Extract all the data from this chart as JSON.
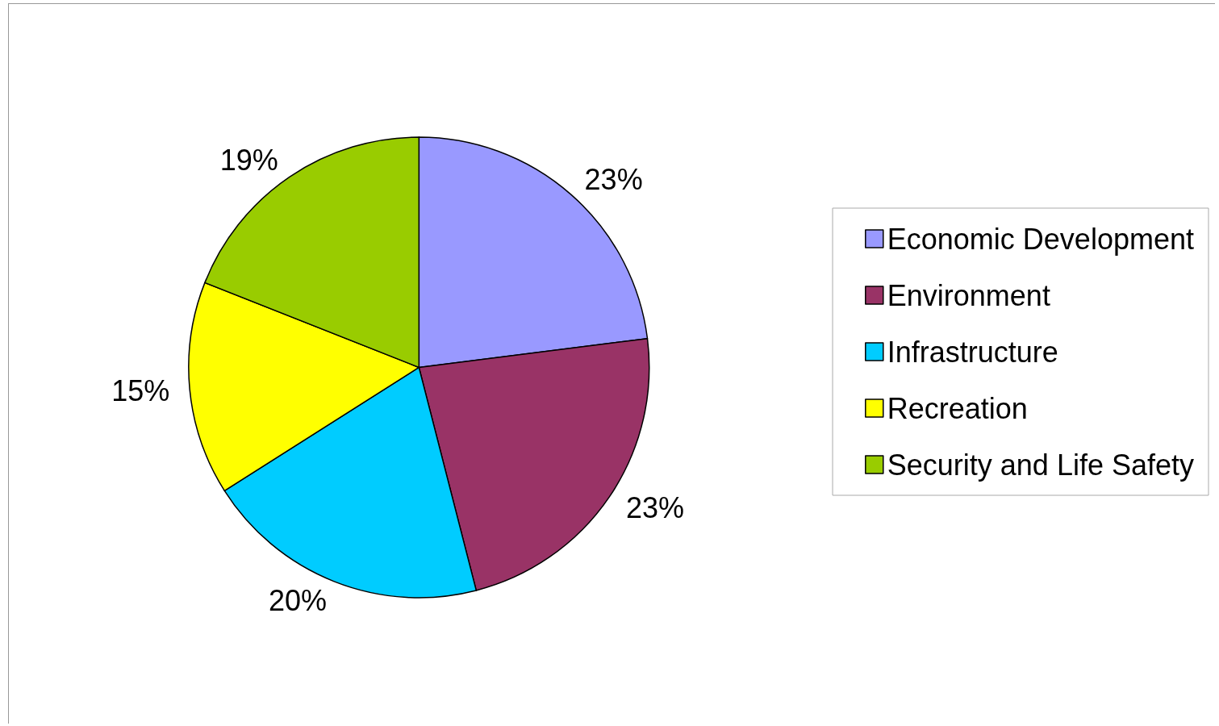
{
  "chart_data": {
    "type": "pie",
    "categories": [
      "Economic Development",
      "Environment",
      "Infrastructure",
      "Recreation",
      "Security and Life Safety"
    ],
    "values": [
      23,
      23,
      20,
      15,
      19
    ],
    "value_labels": [
      "23%",
      "23%",
      "20%",
      "15%",
      "19%"
    ],
    "colors": [
      "#9999ff",
      "#993366",
      "#00ccff",
      "#ffff00",
      "#99cc00"
    ],
    "legend": "right"
  }
}
